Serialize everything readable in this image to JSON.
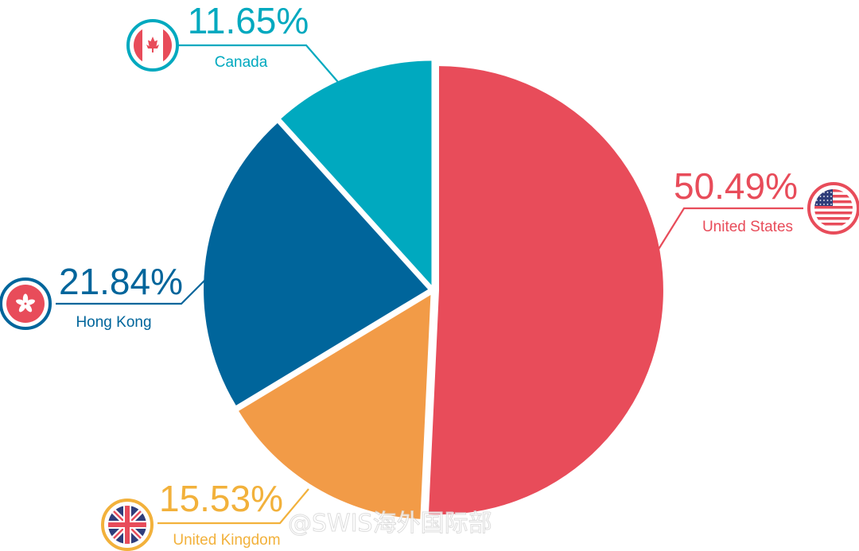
{
  "chart_data": {
    "type": "pie",
    "slices": [
      {
        "name": "United States",
        "value": 50.49,
        "value_label": "50.49%",
        "color": "#e84c5a",
        "flag": "us-flag-icon"
      },
      {
        "name": "United Kingdom",
        "value": 15.53,
        "value_label": "15.53%",
        "color": "#f29b47",
        "flag": "uk-flag-icon"
      },
      {
        "name": "Hong Kong",
        "value": 21.84,
        "value_label": "21.84%",
        "color": "#00659b",
        "flag": "hong-kong-flag-icon"
      },
      {
        "name": "Canada",
        "value": 11.65,
        "value_label": "11.65%",
        "color": "#00a9bf",
        "flag": "canada-flag-icon"
      }
    ],
    "start_angle": "12 o'clock",
    "direction": "clockwise",
    "legend": "none",
    "label_colors": {
      "United States": "#e84c5a",
      "United Kingdom": "#f2b13b",
      "Hong Kong": "#00659b",
      "Canada": "#00a9bf"
    }
  },
  "watermark": "@SWIS海外国际部"
}
